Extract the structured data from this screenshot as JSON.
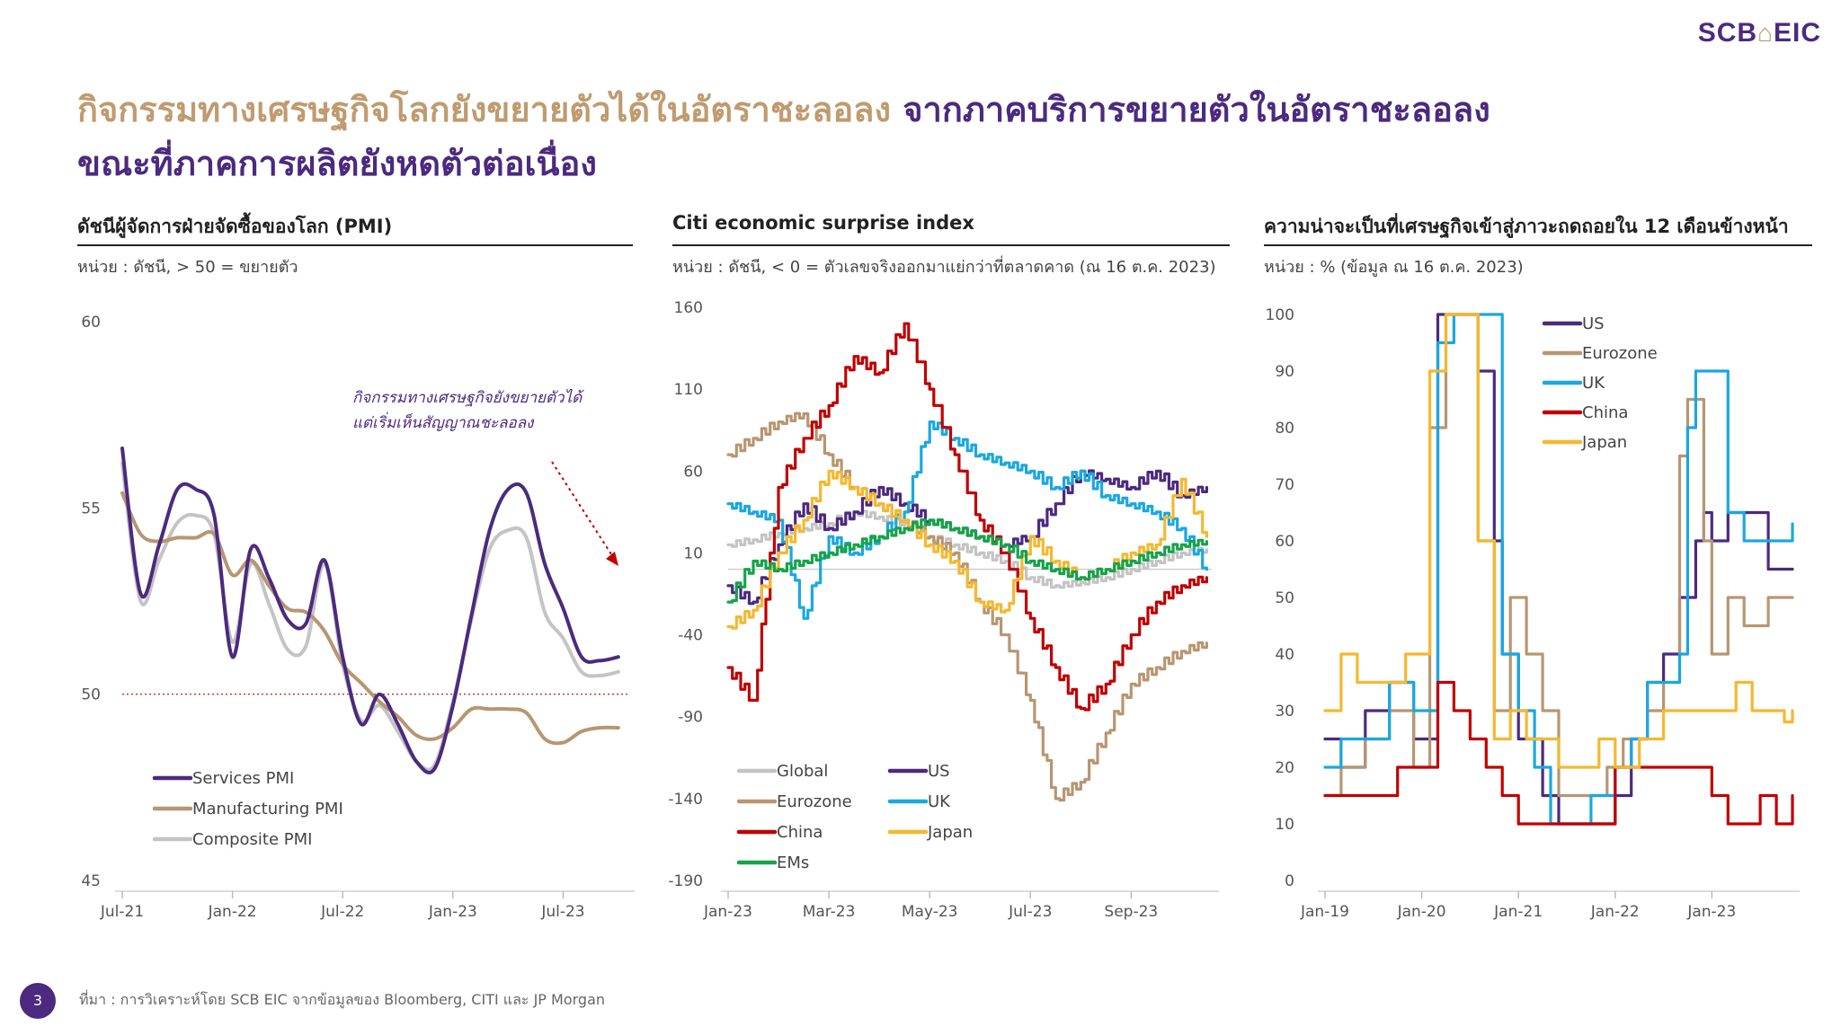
{
  "brand": {
    "logo_left": "SCB",
    "logo_right": "EIC"
  },
  "headline": {
    "part1": "กิจกรรมทางเศรษฐกิจโลกยังขยายตัวได้ในอัตราชะลอลง",
    "part2": "จากภาคบริการขยายตัวในอัตราชะลอลง",
    "line2": "ขณะที่ภาคการผลิตยังหดตัวต่อเนื่อง"
  },
  "footer": {
    "page_number": "3",
    "source": "ที่มา : การวิเคราะห์โดย SCB EIC จากข้อมูลของ Bloomberg, CITI และ JP Morgan"
  },
  "colors": {
    "purple": "#4b2a7f",
    "gold": "#bf9b6f",
    "tan": "#b89672",
    "grey": "#c4c4c4",
    "blue": "#1aa8e0",
    "red": "#c00000",
    "yellow": "#f5b82e",
    "green": "#16a34a"
  },
  "chart_data": [
    {
      "type": "line",
      "title": "ดัชนีผู้จัดการฝ่ายจัดซื้อของโลก (PMI)",
      "unit": "หน่วย : ดัชนี, > 50 = ขยายตัว",
      "annotation": "กิจกรรมทางเศรษฐกิจยังขยายตัวได้ แต่เริ่มเห็นสัญญาณชะลอลง",
      "annotation_lines": [
        "กิจกรรมทางเศรษฐกิจยังขยายตัวได้",
        "แต่เริ่มเห็นสัญญาณชะลอลง"
      ],
      "ylim": [
        45,
        60
      ],
      "yticks": [
        "60",
        "55",
        "50",
        "45"
      ],
      "xlim": [
        0,
        27.5
      ],
      "xticks": [
        {
          "x": 0,
          "label": "Jul-21"
        },
        {
          "x": 6,
          "label": "Jan-22"
        },
        {
          "x": 12,
          "label": "Jul-22"
        },
        {
          "x": 18,
          "label": "Jan-23"
        },
        {
          "x": 24,
          "label": "Jul-23"
        }
      ],
      "reference_line": 50,
      "legend": [
        "Services PMI",
        "Manufacturing PMI",
        "Composite PMI"
      ],
      "series": [
        {
          "name": "Services PMI",
          "color": "#4b2a7f",
          "x": [
            0,
            1,
            2,
            3,
            4,
            5,
            6,
            7,
            8,
            9,
            10,
            11,
            12,
            13,
            14,
            15,
            16,
            17,
            18,
            19,
            20,
            21,
            22,
            23,
            24,
            25,
            26,
            27
          ],
          "values": [
            56.6,
            52.7,
            54.0,
            55.5,
            55.5,
            54.8,
            51.0,
            53.9,
            53.1,
            52.0,
            51.9,
            53.6,
            51.0,
            49.2,
            50.0,
            49.2,
            48.2,
            48.0,
            49.7,
            52.1,
            54.4,
            55.5,
            55.4,
            53.5,
            52.3,
            51.0,
            50.9,
            51.0
          ]
        },
        {
          "name": "Manufacturing PMI",
          "color": "#b89672",
          "x": [
            0,
            1,
            2,
            3,
            4,
            5,
            6,
            7,
            8,
            9,
            10,
            11,
            12,
            13,
            14,
            15,
            16,
            17,
            18,
            19,
            20,
            21,
            22,
            23,
            24,
            25,
            26,
            27
          ],
          "values": [
            55.4,
            54.3,
            54.1,
            54.2,
            54.2,
            54.3,
            53.2,
            53.6,
            52.9,
            52.3,
            52.2,
            51.7,
            50.8,
            50.3,
            49.8,
            49.4,
            48.9,
            48.8,
            49.1,
            49.6,
            49.6,
            49.6,
            49.5,
            48.8,
            48.7,
            49.0,
            49.1,
            49.1
          ]
        },
        {
          "name": "Composite PMI",
          "color": "#c4c4c4",
          "x": [
            0,
            1,
            2,
            3,
            4,
            5,
            6,
            7,
            8,
            9,
            10,
            11,
            12,
            13,
            14,
            15,
            16,
            17,
            18,
            19,
            20,
            21,
            22,
            23,
            24,
            25,
            26,
            27
          ],
          "values": [
            56.2,
            52.5,
            53.6,
            54.6,
            54.8,
            54.3,
            51.4,
            53.5,
            52.4,
            51.2,
            51.3,
            53.5,
            50.8,
            49.3,
            49.7,
            49.0,
            48.2,
            48.1,
            49.8,
            52.0,
            53.9,
            54.4,
            54.2,
            52.2,
            51.5,
            50.6,
            50.5,
            50.6
          ]
        }
      ]
    },
    {
      "type": "line",
      "title": "Citi economic surprise index",
      "unit": "หน่วย : ดัชนี, < 0 = ตัวเลขจริงออกมาแย่กว่าที่ตลาดคาด (ณ 16 ต.ค. 2023)",
      "ylim": [
        -190,
        160
      ],
      "yticks": [
        "160",
        "110",
        "60",
        "10",
        "-40",
        "-90",
        "-140",
        "-190"
      ],
      "xlim": [
        0,
        9.6
      ],
      "xticks": [
        {
          "x": 0,
          "label": "Jan-23"
        },
        {
          "x": 2,
          "label": "Mar-23"
        },
        {
          "x": 4,
          "label": "May-23"
        },
        {
          "x": 6,
          "label": "Jul-23"
        },
        {
          "x": 8,
          "label": "Sep-23"
        }
      ],
      "zero_line": 0,
      "legend": [
        "Global",
        "US",
        "Eurozone",
        "UK",
        "China",
        "Japan",
        "EMs"
      ],
      "series": [
        {
          "name": "Global",
          "color": "#c4c4c4",
          "x": [
            0,
            0.5,
            1,
            1.5,
            2,
            2.5,
            3,
            3.5,
            4,
            4.5,
            5,
            5.5,
            6,
            6.5,
            7,
            7.5,
            8,
            8.5,
            9,
            9.5
          ],
          "values": [
            15,
            18,
            22,
            25,
            28,
            35,
            32,
            28,
            20,
            15,
            10,
            5,
            -5,
            -10,
            -8,
            -5,
            0,
            5,
            10,
            12
          ]
        },
        {
          "name": "US",
          "color": "#4b2a7f",
          "x": [
            0,
            0.5,
            1,
            1.5,
            2,
            2.5,
            3,
            3.5,
            4,
            4.5,
            5,
            5.5,
            6,
            6.5,
            7,
            7.5,
            8,
            8.5,
            9,
            9.5
          ],
          "values": [
            -10,
            -20,
            15,
            40,
            25,
            35,
            50,
            40,
            30,
            25,
            20,
            15,
            20,
            40,
            60,
            55,
            50,
            60,
            45,
            50
          ]
        },
        {
          "name": "Eurozone",
          "color": "#b89672",
          "x": [
            0,
            0.5,
            1,
            1.5,
            2,
            2.5,
            3,
            3.5,
            4,
            4.5,
            5,
            5.5,
            6,
            6.5,
            7,
            7.5,
            8,
            8.5,
            9,
            9.5
          ],
          "values": [
            70,
            80,
            90,
            95,
            70,
            50,
            40,
            30,
            20,
            10,
            -20,
            -40,
            -80,
            -140,
            -130,
            -100,
            -70,
            -60,
            -50,
            -45
          ]
        },
        {
          "name": "UK",
          "color": "#1aa8e0",
          "x": [
            0,
            0.5,
            1,
            1.5,
            2,
            2.5,
            3,
            3.5,
            4,
            4.5,
            5,
            5.5,
            6,
            6.5,
            7,
            7.5,
            8,
            8.5,
            9,
            9.5
          ],
          "values": [
            40,
            35,
            30,
            -30,
            20,
            10,
            20,
            35,
            90,
            80,
            70,
            65,
            60,
            50,
            60,
            45,
            40,
            35,
            25,
            0
          ]
        },
        {
          "name": "China",
          "color": "#c00000",
          "x": [
            0,
            0.5,
            1,
            1.5,
            2,
            2.5,
            3,
            3.5,
            4,
            4.5,
            5,
            5.5,
            6,
            6.5,
            7,
            7.5,
            8,
            8.5,
            9,
            9.5
          ],
          "values": [
            -60,
            -80,
            50,
            80,
            100,
            130,
            120,
            150,
            110,
            70,
            30,
            10,
            -30,
            -60,
            -85,
            -70,
            -40,
            -20,
            -10,
            -5
          ]
        },
        {
          "name": "Japan",
          "color": "#f5b82e",
          "x": [
            0,
            0.5,
            1,
            1.5,
            2,
            2.5,
            3,
            3.5,
            4,
            4.5,
            5,
            5.5,
            6,
            6.5,
            7,
            7.5,
            8,
            8.5,
            9,
            9.5
          ],
          "values": [
            -35,
            -25,
            10,
            30,
            60,
            50,
            40,
            30,
            15,
            5,
            -20,
            -25,
            20,
            5,
            -5,
            0,
            10,
            15,
            55,
            20
          ]
        },
        {
          "name": "EMs",
          "color": "#16a34a",
          "x": [
            0,
            0.5,
            1,
            1.5,
            2,
            2.5,
            3,
            3.5,
            4,
            4.5,
            5,
            5.5,
            6,
            6.5,
            7,
            7.5,
            8,
            8.5,
            9,
            9.5
          ],
          "values": [
            -20,
            5,
            0,
            5,
            10,
            15,
            20,
            25,
            30,
            25,
            20,
            15,
            5,
            0,
            -5,
            0,
            5,
            10,
            15,
            17
          ]
        }
      ]
    },
    {
      "type": "line",
      "title": "ความน่าจะเป็นที่เศรษฐกิจเข้าสู่ภาวะถดถอยใน 12 เดือนข้างหน้า",
      "unit": "หน่วย : % (ข้อมูล ณ 16 ต.ค. 2023)",
      "ylim": [
        0,
        100
      ],
      "yticks": [
        "100",
        "90",
        "80",
        "70",
        "60",
        "50",
        "40",
        "30",
        "20",
        "10",
        "0"
      ],
      "xlim": [
        0,
        58
      ],
      "xticks": [
        {
          "x": 0,
          "label": "Jan-19"
        },
        {
          "x": 12,
          "label": "Jan-20"
        },
        {
          "x": 24,
          "label": "Jan-21"
        },
        {
          "x": 36,
          "label": "Jan-22"
        },
        {
          "x": 48,
          "label": "Jan-23"
        }
      ],
      "legend": [
        "US",
        "Eurozone",
        "UK",
        "China",
        "Japan"
      ],
      "series": [
        {
          "name": "US",
          "color": "#4b2a7f",
          "x": [
            0,
            2,
            5,
            8,
            11,
            14,
            15,
            17,
            19,
            21,
            22,
            24,
            27,
            29,
            32,
            36,
            38,
            40,
            42,
            44,
            46,
            47,
            48,
            50,
            52,
            55,
            58
          ],
          "values": [
            25,
            20,
            30,
            35,
            25,
            100,
            100,
            100,
            90,
            60,
            40,
            25,
            15,
            10,
            10,
            15,
            25,
            35,
            40,
            50,
            60,
            65,
            60,
            65,
            65,
            55,
            55
          ]
        },
        {
          "name": "Eurozone",
          "color": "#b89672",
          "x": [
            0,
            2,
            5,
            8,
            11,
            13,
            15,
            17,
            19,
            21,
            23,
            25,
            27,
            29,
            32,
            35,
            37,
            40,
            42,
            44,
            45,
            47,
            48,
            50,
            52,
            55,
            58
          ],
          "values": [
            15,
            20,
            25,
            30,
            20,
            80,
            100,
            100,
            60,
            30,
            50,
            40,
            30,
            15,
            15,
            20,
            25,
            30,
            35,
            75,
            85,
            60,
            40,
            50,
            45,
            50,
            50
          ]
        },
        {
          "name": "UK",
          "color": "#1aa8e0",
          "x": [
            0,
            2,
            5,
            8,
            11,
            14,
            16,
            18,
            20,
            22,
            24,
            26,
            28,
            30,
            33,
            36,
            38,
            40,
            42,
            44,
            45,
            46,
            48,
            50,
            52,
            55,
            58
          ],
          "values": [
            20,
            25,
            25,
            35,
            30,
            95,
            100,
            100,
            100,
            40,
            30,
            20,
            10,
            10,
            15,
            20,
            25,
            35,
            35,
            40,
            80,
            90,
            90,
            65,
            60,
            60,
            63
          ]
        },
        {
          "name": "China",
          "color": "#c00000",
          "x": [
            0,
            3,
            6,
            9,
            12,
            14,
            16,
            18,
            20,
            22,
            24,
            26,
            30,
            33,
            36,
            38,
            40,
            44,
            48,
            50,
            52,
            54,
            56,
            58
          ],
          "values": [
            15,
            15,
            15,
            20,
            20,
            35,
            30,
            25,
            20,
            15,
            10,
            10,
            10,
            10,
            20,
            20,
            20,
            20,
            15,
            10,
            10,
            15,
            10,
            15
          ]
        },
        {
          "name": "Japan",
          "color": "#f5b82e",
          "x": [
            0,
            2,
            4,
            7,
            10,
            13,
            15,
            17,
            19,
            21,
            23,
            25,
            27,
            29,
            31,
            34,
            36,
            39,
            42,
            45,
            48,
            51,
            53,
            55,
            57,
            58
          ],
          "values": [
            30,
            40,
            35,
            35,
            40,
            90,
            100,
            100,
            60,
            25,
            30,
            25,
            25,
            20,
            20,
            25,
            20,
            25,
            30,
            30,
            30,
            35,
            30,
            30,
            28,
            30
          ]
        }
      ]
    }
  ]
}
